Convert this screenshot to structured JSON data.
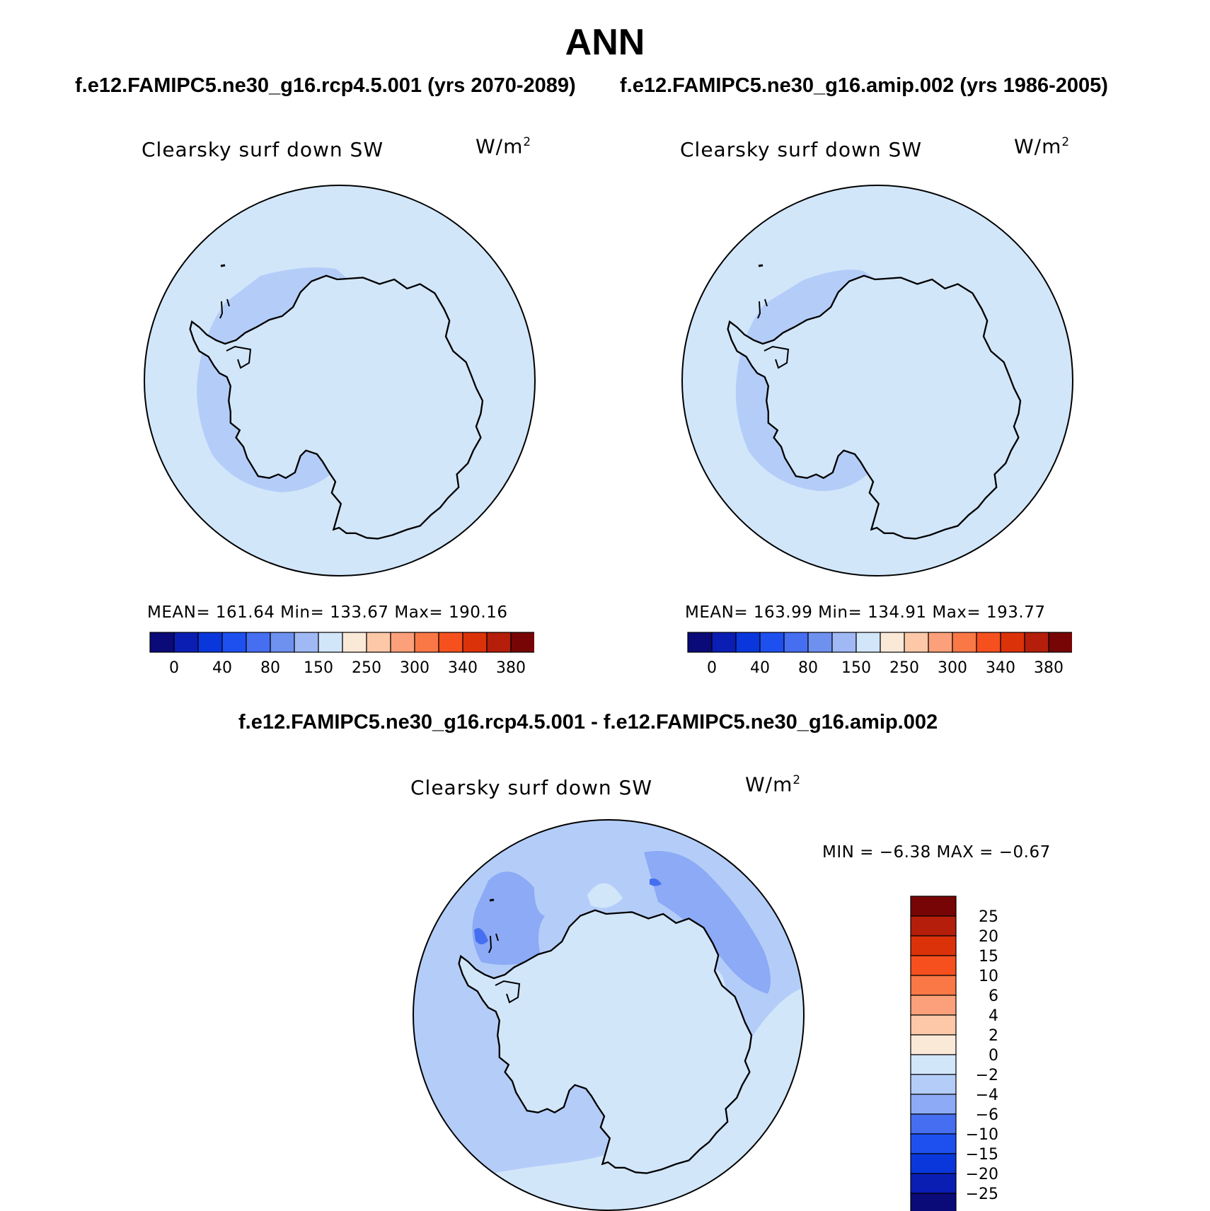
{
  "page": {
    "title": "ANN",
    "subtitle_left": "f.e12.FAMIPC5.ne30_g16.rcp4.5.001 (yrs 2070-2089)",
    "subtitle_right": "f.e12.FAMIPC5.ne30_g16.amip.002 (yrs 1986-2005)",
    "diff_title": "f.e12.FAMIPC5.ne30_g16.rcp4.5.001 - f.e12.FAMIPC5.ne30_g16.amip.002"
  },
  "panels": [
    {
      "variable": "Clearsky surf down SW",
      "units_base": "W/m",
      "units_sup": "2",
      "stats": "MEAN=  161.64   Min=  133.67   Max=  190.16"
    },
    {
      "variable": "Clearsky surf down SW",
      "units_base": "W/m",
      "units_sup": "2",
      "stats": "MEAN=  163.99   Min=  134.91   Max=  193.77"
    },
    {
      "variable": "Clearsky surf down SW",
      "units_base": "W/m",
      "units_sup": "2",
      "stats": "MIN =   −6.38  MAX =   −0.67"
    }
  ],
  "colorbar_main": {
    "colors": [
      "#0a0a78",
      "#0a1eb4",
      "#0a37dc",
      "#1e50f0",
      "#466ef0",
      "#6e91f0",
      "#a0b9f5",
      "#d2e6fa",
      "#fbe9d8",
      "#fcc8a8",
      "#fba07a",
      "#fa7846",
      "#f5501e",
      "#dc320a",
      "#b41e0a",
      "#780505"
    ],
    "labels": [
      "0",
      "40",
      "80",
      "150",
      "250",
      "300",
      "340",
      "380"
    ]
  },
  "colorbar_diff": {
    "colors": [
      "#780505",
      "#b41e0a",
      "#dc320a",
      "#f5501e",
      "#fa7846",
      "#fba07a",
      "#fcc8a8",
      "#fbe9d8",
      "#d2e6fa",
      "#b4cdf8",
      "#8caaf5",
      "#466ef0",
      "#1e50f0",
      "#0a37dc",
      "#0a1eb4",
      "#0a0a78"
    ],
    "labels": [
      "25",
      "20",
      "15",
      "10",
      "6",
      "4",
      "2",
      "0",
      "−2",
      "−4",
      "−6",
      "−10",
      "−15",
      "−20",
      "−25"
    ]
  },
  "map_colors": {
    "ocean_main": "#d2e6fa",
    "ring_main": "#b4cdf8",
    "diff_outer": "#b4cdf8",
    "diff_patch": "#8caaf5",
    "diff_dark": "#466ef0",
    "land_light": "#d2e6fa"
  }
}
